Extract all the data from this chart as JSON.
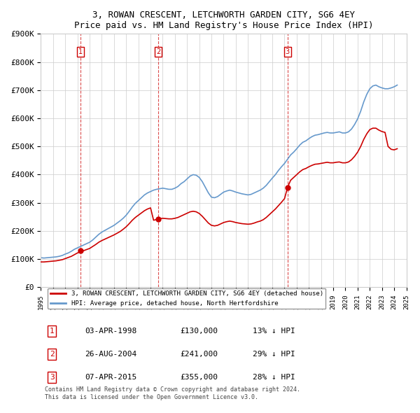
{
  "title": "3, ROWAN CRESCENT, LETCHWORTH GARDEN CITY, SG6 4EY",
  "subtitle": "Price paid vs. HM Land Registry's House Price Index (HPI)",
  "ylim": [
    0,
    900000
  ],
  "yticks": [
    0,
    100000,
    200000,
    300000,
    400000,
    500000,
    600000,
    700000,
    800000,
    900000
  ],
  "ytick_labels": [
    "£0",
    "£100K",
    "£200K",
    "£300K",
    "£400K",
    "£500K",
    "£600K",
    "£700K",
    "£800K",
    "£900K"
  ],
  "hpi_color": "#6699cc",
  "price_color": "#cc0000",
  "vline_color": "#cc0000",
  "background_color": "#ffffff",
  "grid_color": "#cccccc",
  "transactions": [
    {
      "date": "1998-04-03",
      "price": 130000,
      "label": "1"
    },
    {
      "date": "2004-08-26",
      "price": 241000,
      "label": "2"
    },
    {
      "date": "2015-04-07",
      "price": 355000,
      "label": "3"
    }
  ],
  "legend_property_label": "3, ROWAN CRESCENT, LETCHWORTH GARDEN CITY, SG6 4EY (detached house)",
  "legend_hpi_label": "HPI: Average price, detached house, North Hertfordshire",
  "table_rows": [
    {
      "num": "1",
      "date": "03-APR-1998",
      "price": "£130,000",
      "pct": "13% ↓ HPI"
    },
    {
      "num": "2",
      "date": "26-AUG-2004",
      "price": "£241,000",
      "pct": "29% ↓ HPI"
    },
    {
      "num": "3",
      "date": "07-APR-2015",
      "price": "£355,000",
      "pct": "28% ↓ HPI"
    }
  ],
  "footer": "Contains HM Land Registry data © Crown copyright and database right 2024.\nThis data is licensed under the Open Government Licence v3.0.",
  "hpi_data_x": [
    1995.0,
    1995.25,
    1995.5,
    1995.75,
    1996.0,
    1996.25,
    1996.5,
    1996.75,
    1997.0,
    1997.25,
    1997.5,
    1997.75,
    1998.0,
    1998.25,
    1998.5,
    1998.75,
    1999.0,
    1999.25,
    1999.5,
    1999.75,
    2000.0,
    2000.25,
    2000.5,
    2000.75,
    2001.0,
    2001.25,
    2001.5,
    2001.75,
    2002.0,
    2002.25,
    2002.5,
    2002.75,
    2003.0,
    2003.25,
    2003.5,
    2003.75,
    2004.0,
    2004.25,
    2004.5,
    2004.75,
    2005.0,
    2005.25,
    2005.5,
    2005.75,
    2006.0,
    2006.25,
    2006.5,
    2006.75,
    2007.0,
    2007.25,
    2007.5,
    2007.75,
    2008.0,
    2008.25,
    2008.5,
    2008.75,
    2009.0,
    2009.25,
    2009.5,
    2009.75,
    2010.0,
    2010.25,
    2010.5,
    2010.75,
    2011.0,
    2011.25,
    2011.5,
    2011.75,
    2012.0,
    2012.25,
    2012.5,
    2012.75,
    2013.0,
    2013.25,
    2013.5,
    2013.75,
    2014.0,
    2014.25,
    2014.5,
    2014.75,
    2015.0,
    2015.25,
    2015.5,
    2015.75,
    2016.0,
    2016.25,
    2016.5,
    2016.75,
    2017.0,
    2017.25,
    2017.5,
    2017.75,
    2018.0,
    2018.25,
    2018.5,
    2018.75,
    2019.0,
    2019.25,
    2019.5,
    2019.75,
    2020.0,
    2020.25,
    2020.5,
    2020.75,
    2021.0,
    2021.25,
    2021.5,
    2021.75,
    2022.0,
    2022.25,
    2022.5,
    2022.75,
    2023.0,
    2023.25,
    2023.5,
    2023.75,
    2024.0,
    2024.25
  ],
  "hpi_data_y": [
    105000,
    104000,
    105000,
    106000,
    107000,
    108000,
    110000,
    113000,
    118000,
    122000,
    128000,
    135000,
    140000,
    145000,
    150000,
    155000,
    160000,
    168000,
    178000,
    188000,
    196000,
    202000,
    208000,
    214000,
    220000,
    228000,
    236000,
    245000,
    256000,
    270000,
    285000,
    298000,
    308000,
    318000,
    328000,
    335000,
    340000,
    345000,
    348000,
    350000,
    352000,
    350000,
    348000,
    348000,
    352000,
    358000,
    368000,
    375000,
    385000,
    395000,
    400000,
    398000,
    390000,
    375000,
    355000,
    335000,
    320000,
    318000,
    322000,
    330000,
    338000,
    342000,
    345000,
    342000,
    338000,
    335000,
    332000,
    330000,
    328000,
    330000,
    335000,
    340000,
    345000,
    352000,
    362000,
    375000,
    388000,
    400000,
    415000,
    428000,
    440000,
    455000,
    470000,
    480000,
    492000,
    505000,
    515000,
    520000,
    528000,
    535000,
    540000,
    542000,
    545000,
    548000,
    550000,
    548000,
    548000,
    550000,
    552000,
    548000,
    548000,
    552000,
    562000,
    578000,
    598000,
    625000,
    658000,
    685000,
    705000,
    715000,
    718000,
    712000,
    708000,
    705000,
    705000,
    708000,
    712000,
    718000
  ],
  "price_data_x": [
    1995.0,
    1995.25,
    1995.5,
    1995.75,
    1996.0,
    1996.25,
    1996.5,
    1996.75,
    1997.0,
    1997.25,
    1997.5,
    1997.75,
    1998.0,
    1998.25,
    1998.5,
    1998.75,
    1999.0,
    1999.25,
    1999.5,
    1999.75,
    2000.0,
    2000.25,
    2000.5,
    2000.75,
    2001.0,
    2001.25,
    2001.5,
    2001.75,
    2002.0,
    2002.25,
    2002.5,
    2002.75,
    2003.0,
    2003.25,
    2003.5,
    2003.75,
    2004.0,
    2004.25,
    2004.5,
    2004.75,
    2005.0,
    2005.25,
    2005.5,
    2005.75,
    2006.0,
    2006.25,
    2006.5,
    2006.75,
    2007.0,
    2007.25,
    2007.5,
    2007.75,
    2008.0,
    2008.25,
    2008.5,
    2008.75,
    2009.0,
    2009.25,
    2009.5,
    2009.75,
    2010.0,
    2010.25,
    2010.5,
    2010.75,
    2011.0,
    2011.25,
    2011.5,
    2011.75,
    2012.0,
    2012.25,
    2012.5,
    2012.75,
    2013.0,
    2013.25,
    2013.5,
    2013.75,
    2014.0,
    2014.25,
    2014.5,
    2014.75,
    2015.0,
    2015.25,
    2015.5,
    2015.75,
    2016.0,
    2016.25,
    2016.5,
    2016.75,
    2017.0,
    2017.25,
    2017.5,
    2017.75,
    2018.0,
    2018.25,
    2018.5,
    2018.75,
    2019.0,
    2019.25,
    2019.5,
    2019.75,
    2020.0,
    2020.25,
    2020.5,
    2020.75,
    2021.0,
    2021.25,
    2021.5,
    2021.75,
    2022.0,
    2022.25,
    2022.5,
    2022.75,
    2023.0,
    2023.25,
    2023.5,
    2023.75,
    2024.0,
    2024.25
  ],
  "price_data_y": [
    90000,
    90000,
    91000,
    92000,
    93000,
    94000,
    96000,
    98000,
    102000,
    106000,
    110000,
    116000,
    122000,
    126000,
    130000,
    134000,
    138000,
    145000,
    152000,
    160000,
    166000,
    171000,
    176000,
    181000,
    186000,
    192000,
    198000,
    206000,
    215000,
    226000,
    238000,
    248000,
    256000,
    264000,
    272000,
    278000,
    282000,
    238000,
    241000,
    244000,
    245000,
    244000,
    243000,
    243000,
    245000,
    248000,
    253000,
    258000,
    263000,
    268000,
    270000,
    268000,
    262000,
    252000,
    240000,
    228000,
    220000,
    218000,
    220000,
    225000,
    230000,
    233000,
    235000,
    233000,
    230000,
    228000,
    226000,
    225000,
    224000,
    225000,
    228000,
    232000,
    235000,
    240000,
    248000,
    258000,
    268000,
    278000,
    290000,
    302000,
    315000,
    355000,
    380000,
    390000,
    400000,
    410000,
    418000,
    422000,
    428000,
    433000,
    437000,
    438000,
    440000,
    442000,
    444000,
    442000,
    442000,
    444000,
    445000,
    442000,
    442000,
    445000,
    453000,
    465000,
    480000,
    500000,
    525000,
    545000,
    560000,
    565000,
    565000,
    558000,
    553000,
    550000,
    500000,
    490000,
    488000,
    492000
  ]
}
